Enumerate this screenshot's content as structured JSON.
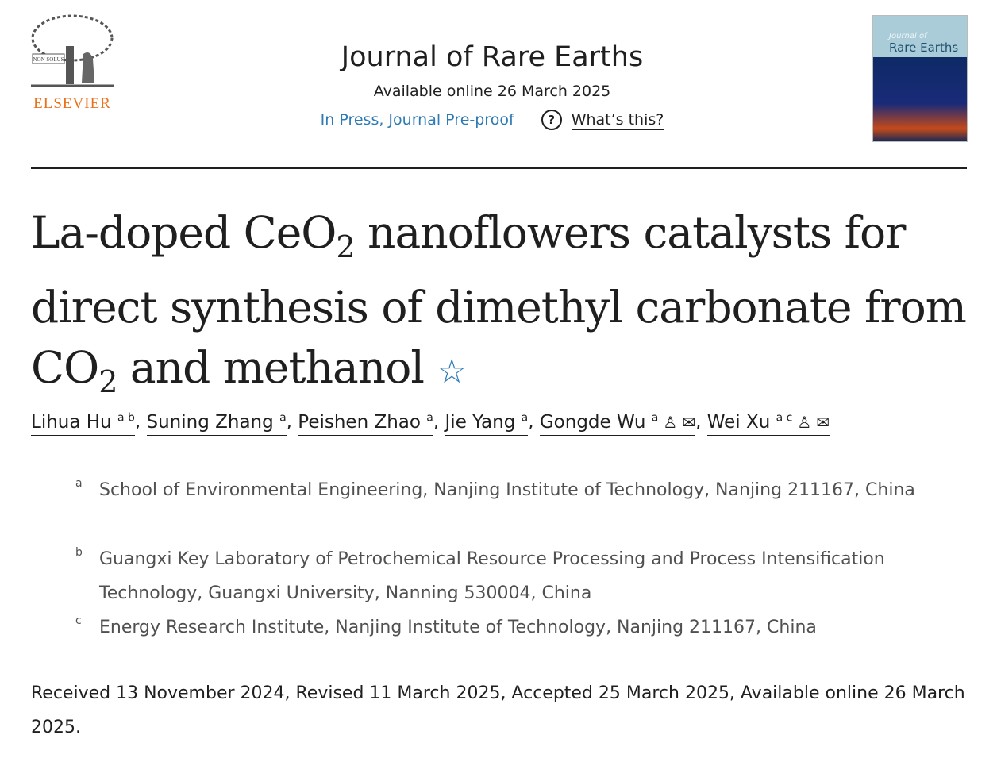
{
  "publisher": {
    "name": "ELSEVIER",
    "tree_motto": "NON SOLUS"
  },
  "journal": {
    "title": "Journal of Rare Earths",
    "available": "Available online 26 March 2025",
    "status_link": "In Press, Journal Pre-proof",
    "help_link": "What’s this?",
    "help_icon": "question-circle-icon",
    "cover_line1": "Journal of",
    "cover_line2": "Rare Earths"
  },
  "article": {
    "title_parts": [
      "La-doped CeO",
      "2",
      " nanoflowers catalysts for direct synthesis of dimethyl carbonate from CO",
      "2",
      " and methanol"
    ],
    "star_icon": "star-icon"
  },
  "authors": [
    {
      "name": "Lihua Hu",
      "sup": "a b"
    },
    {
      "name": "Suning Zhang",
      "sup": "a"
    },
    {
      "name": "Peishen Zhao",
      "sup": "a"
    },
    {
      "name": "Jie Yang",
      "sup": "a"
    },
    {
      "name": "Gongde Wu",
      "sup": "a",
      "icons": [
        "person-icon",
        "envelope-icon"
      ]
    },
    {
      "name": "Wei Xu",
      "sup": "a c",
      "icons": [
        "person-icon",
        "envelope-icon"
      ]
    }
  ],
  "affiliations": [
    {
      "label": "a",
      "text": "School of Environmental Engineering, Nanjing Institute of Technology, Nanjing 211167, China"
    },
    {
      "label": "b",
      "text": "Guangxi Key Laboratory of Petrochemical Resource Processing and Process Intensification Technology, Guangxi University, Nanning 530004, China"
    },
    {
      "label": "c",
      "text": "Energy Research Institute, Nanjing Institute of Technology, Nanjing 211167, China"
    }
  ],
  "dates": "Received 13 November 2024, Revised 11 March 2025, Accepted 25 March 2025, Available online 26 March 2025.",
  "colors": {
    "accent": "#2e7ab5",
    "elsevier": "#e9711c"
  }
}
